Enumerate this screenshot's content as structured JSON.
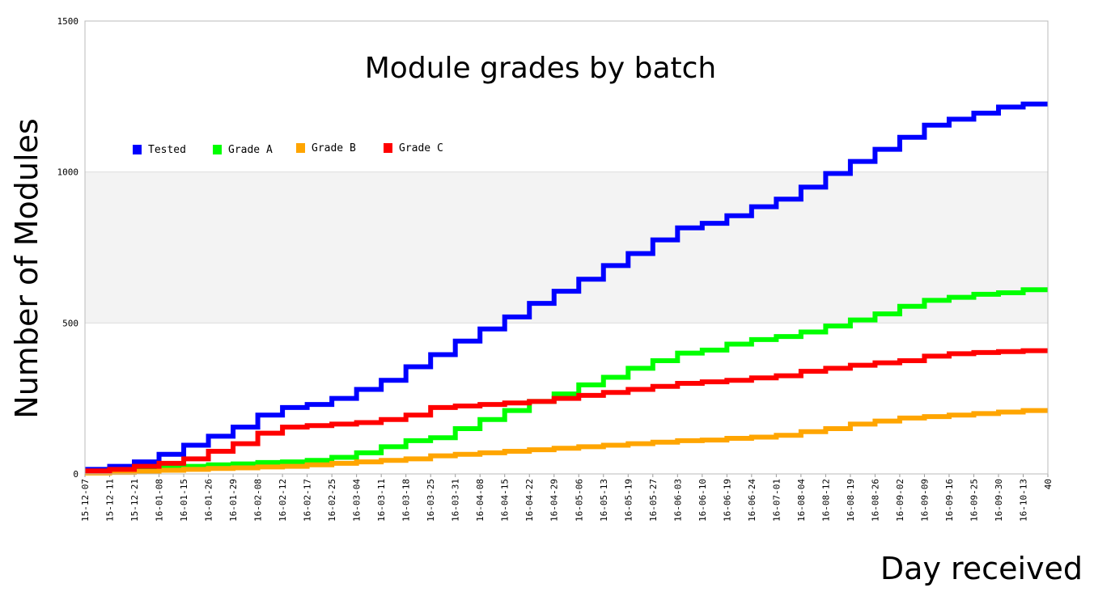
{
  "chart_data": {
    "type": "line",
    "step": true,
    "title": "Module grades by batch",
    "xlabel": "Day received",
    "ylabel": "Number of Modules",
    "ylim": [
      0,
      1500
    ],
    "yticks": [
      0,
      500,
      1000,
      1500
    ],
    "shaded_band": [
      500,
      1000
    ],
    "grid": true,
    "legend_position": "top-left",
    "x_tick_labels": [
      "15-12-07",
      "15-12-11",
      "15-12-21",
      "16-01-08",
      "16-01-15",
      "16-01-26",
      "16-01-29",
      "16-02-08",
      "16-02-12",
      "16-02-17",
      "16-02-25",
      "16-03-04",
      "16-03-11",
      "16-03-18",
      "16-03-25",
      "16-03-31",
      "16-04-08",
      "16-04-15",
      "16-04-22",
      "16-04-29",
      "16-05-06",
      "16-05-13",
      "16-05-19",
      "16-05-27",
      "16-06-03",
      "16-06-10",
      "16-06-19",
      "16-06-24",
      "16-07-01",
      "16-08-04",
      "16-08-12",
      "16-08-19",
      "16-08-26",
      "16-09-02",
      "16-09-09",
      "16-09-16",
      "16-09-25",
      "16-09-30",
      "16-10-13",
      "40"
    ],
    "series": [
      {
        "name": "Tested",
        "color": "#0000ff",
        "values": [
          15,
          25,
          40,
          65,
          95,
          125,
          155,
          195,
          220,
          230,
          250,
          280,
          310,
          355,
          395,
          440,
          480,
          520,
          565,
          605,
          645,
          690,
          730,
          775,
          815,
          830,
          855,
          885,
          910,
          950,
          995,
          1035,
          1075,
          1115,
          1155,
          1175,
          1195,
          1215,
          1225,
          1225
        ]
      },
      {
        "name": "Grade A",
        "color": "#00ff00",
        "values": [
          5,
          10,
          15,
          20,
          25,
          30,
          33,
          38,
          40,
          45,
          55,
          70,
          90,
          110,
          120,
          150,
          180,
          210,
          240,
          265,
          295,
          320,
          350,
          375,
          400,
          410,
          430,
          445,
          455,
          470,
          490,
          510,
          530,
          555,
          575,
          585,
          595,
          600,
          610,
          610
        ]
      },
      {
        "name": "Grade B",
        "color": "#ffa500",
        "values": [
          3,
          5,
          8,
          12,
          15,
          18,
          20,
          23,
          25,
          30,
          35,
          40,
          45,
          50,
          60,
          65,
          70,
          75,
          80,
          85,
          90,
          95,
          100,
          105,
          110,
          112,
          118,
          122,
          128,
          140,
          150,
          165,
          175,
          185,
          190,
          195,
          200,
          205,
          210,
          210
        ]
      },
      {
        "name": "Grade C",
        "color": "#ff0000",
        "values": [
          10,
          15,
          25,
          35,
          50,
          75,
          100,
          135,
          155,
          160,
          165,
          170,
          180,
          195,
          220,
          225,
          230,
          235,
          240,
          250,
          260,
          270,
          280,
          290,
          300,
          305,
          310,
          318,
          325,
          340,
          350,
          360,
          368,
          375,
          390,
          398,
          402,
          405,
          408,
          408
        ]
      }
    ]
  }
}
